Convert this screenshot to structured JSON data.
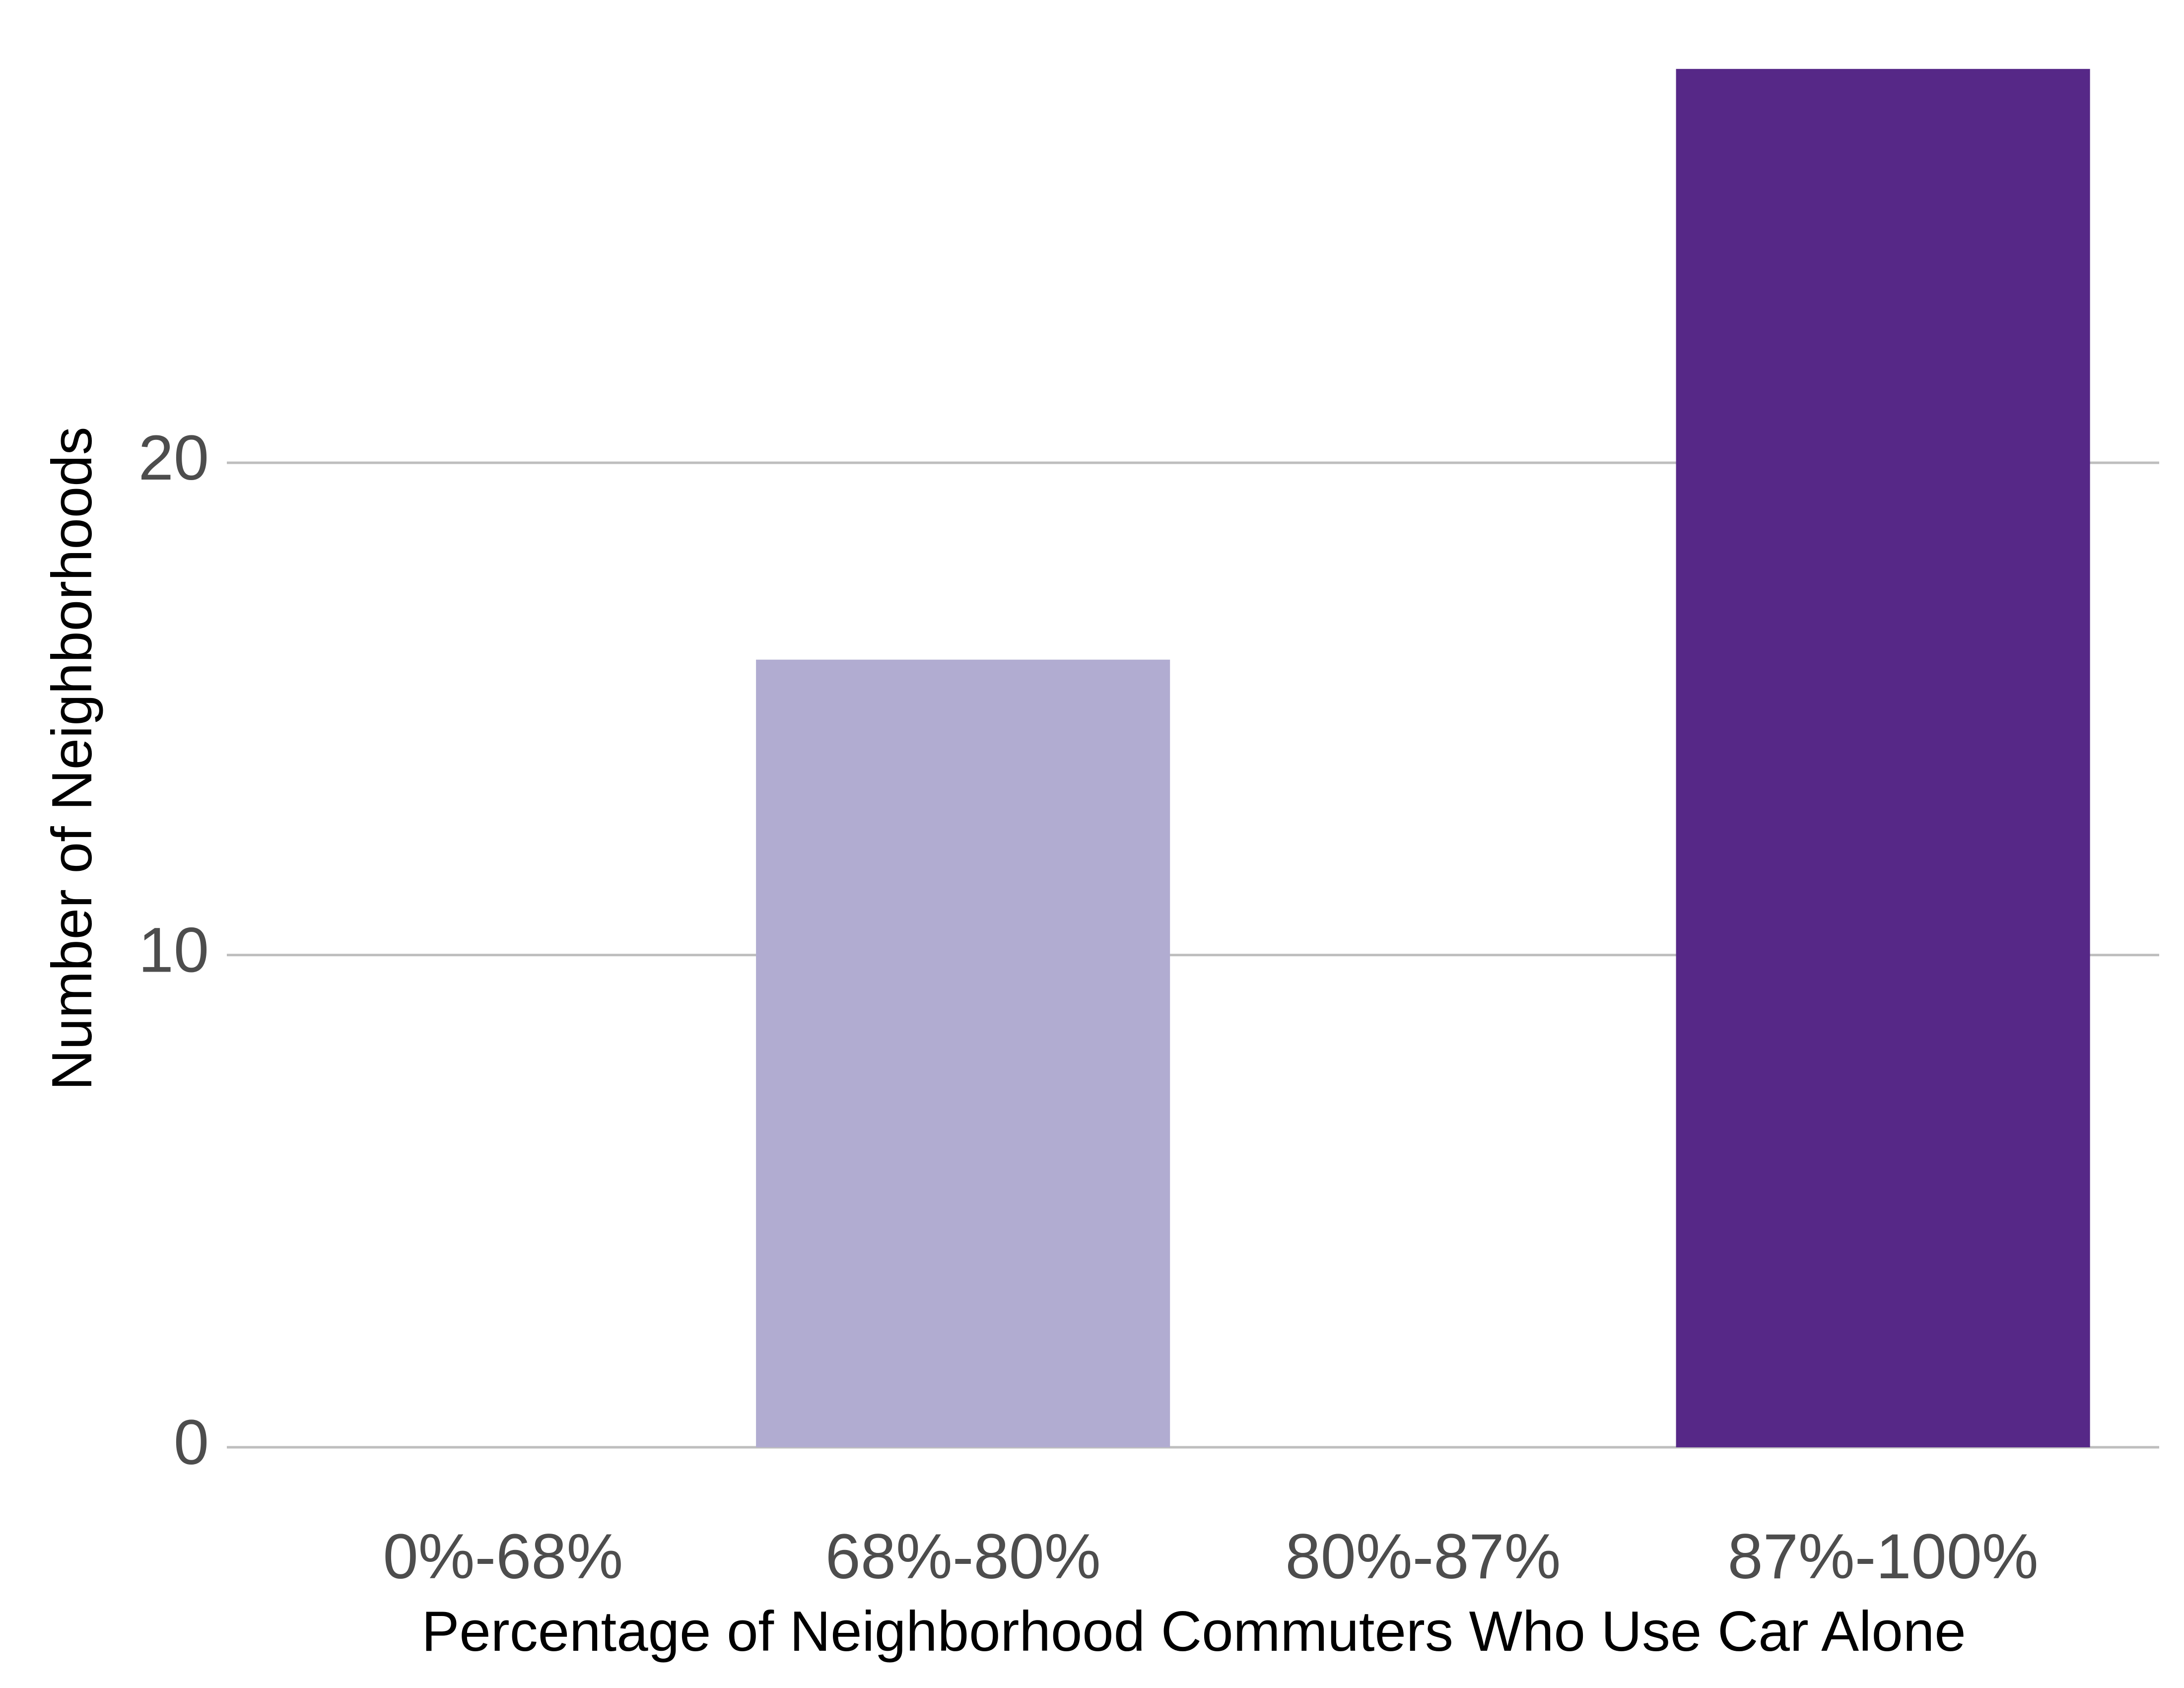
{
  "chart_data": {
    "type": "bar",
    "x_label": "Percentage of Neighborhood Commuters Who Use Car Alone",
    "y_label": "Number of Neighborhoods",
    "categories": [
      "0%-68%",
      "68%-80%",
      "80%-87%",
      "87%-100%"
    ],
    "values": [
      0,
      16,
      0,
      28
    ],
    "colors": [
      "#f2f0f7",
      "#b1acd1",
      "#807dba",
      "#562887"
    ],
    "ylim": [
      -1.4,
      29.4
    ],
    "yticks": [
      0,
      10,
      20
    ],
    "grid": true
  }
}
